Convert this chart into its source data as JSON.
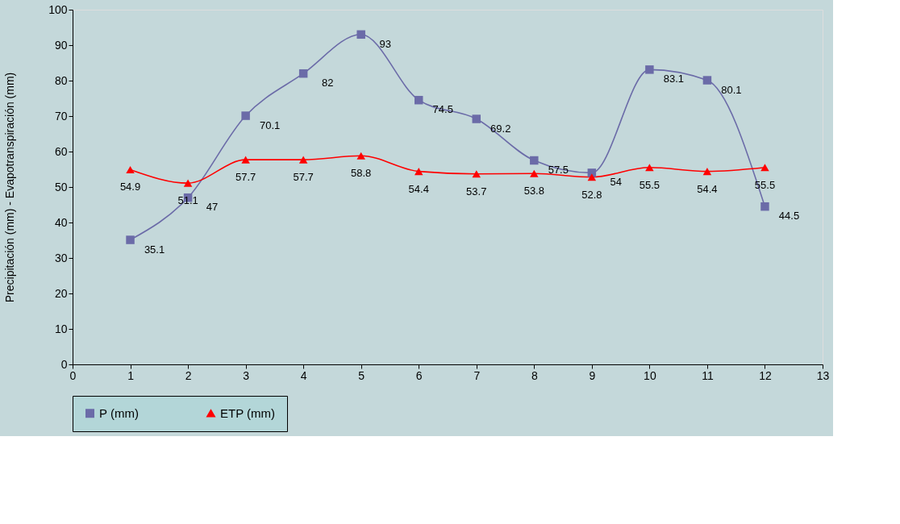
{
  "chart_data": {
    "type": "line",
    "ylabel": "Precipitación (mm) - Evapotranspiración (mm)",
    "x": [
      1,
      2,
      3,
      4,
      5,
      6,
      7,
      8,
      9,
      10,
      11,
      12
    ],
    "series": [
      {
        "name": "P (mm)",
        "color": "#6b6ba8",
        "marker": "square",
        "values": [
          35.1,
          47,
          70.1,
          82,
          93,
          74.5,
          69.2,
          57.5,
          54,
          83.1,
          80.1,
          44.5
        ]
      },
      {
        "name": "ETP (mm)",
        "color": "#ff0000",
        "marker": "triangle",
        "values": [
          54.9,
          51.1,
          57.7,
          57.7,
          58.8,
          54.4,
          53.7,
          53.8,
          52.8,
          55.5,
          54.4,
          55.5
        ]
      }
    ],
    "xlim": [
      0,
      13
    ],
    "xticks": [
      0,
      1,
      2,
      3,
      4,
      5,
      6,
      7,
      8,
      9,
      10,
      11,
      12,
      13
    ],
    "ylim": [
      0,
      100
    ],
    "yticks": [
      0,
      10,
      20,
      30,
      40,
      50,
      60,
      70,
      80,
      90,
      100
    ],
    "grid": false,
    "legend": "bottom",
    "data_labels": true,
    "line_style": "solid"
  }
}
